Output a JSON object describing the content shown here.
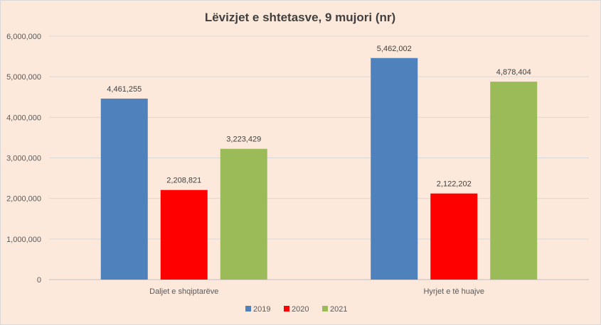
{
  "chart_data": {
    "type": "bar",
    "title": "Lëvizjet e shtetasve, 9 mujori (nr)",
    "xlabel": "",
    "ylabel": "",
    "categories": [
      "Daljet e shqiptarëve",
      "Hyrjet e të huajve"
    ],
    "series": [
      {
        "name": "2019",
        "color": "#4f81bd",
        "values": [
          4461255,
          5462002
        ],
        "labels": [
          "4,461,255",
          "5,462,002"
        ]
      },
      {
        "name": "2020",
        "color": "#ff0000",
        "values": [
          2208821,
          2122202
        ],
        "labels": [
          "2,208,821",
          "2,122,202"
        ]
      },
      {
        "name": "2021",
        "color": "#9bbb59",
        "values": [
          3223429,
          4878404
        ],
        "labels": [
          "3,223,429",
          "4,878,404"
        ]
      }
    ],
    "ylim": [
      0,
      6000000
    ],
    "yticks": [
      0,
      1000000,
      2000000,
      3000000,
      4000000,
      5000000,
      6000000
    ],
    "ytick_labels": [
      "0",
      "1,000,000",
      "2,000,000",
      "3,000,000",
      "4,000,000",
      "5,000,000",
      "6,000,000"
    ],
    "grid": true,
    "legend_position": "bottom"
  }
}
